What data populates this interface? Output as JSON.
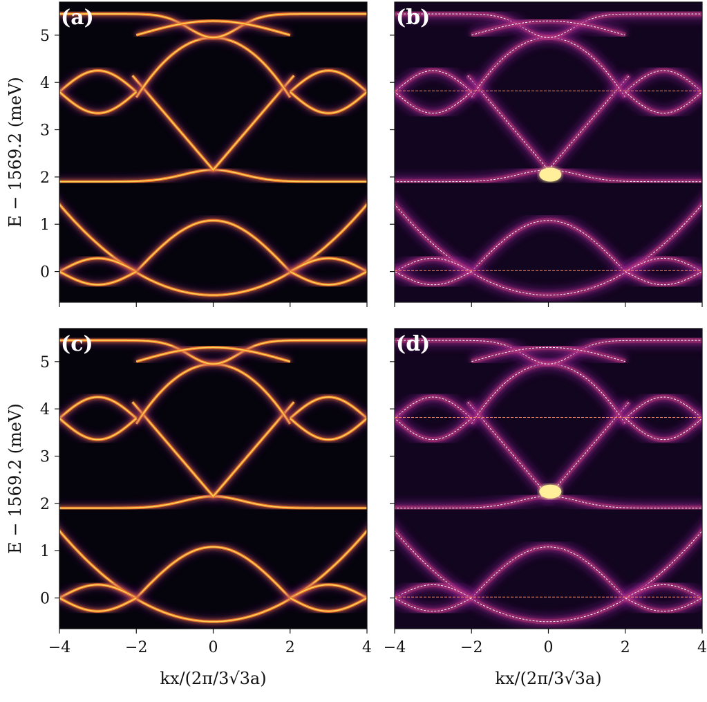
{
  "chart_data": [
    {
      "type": "heatmap",
      "panel_label": "(a)",
      "xlim": [
        -4,
        4
      ],
      "ylim": [
        -0.65,
        5.7
      ],
      "xticks": [
        -4,
        -2,
        0,
        2,
        4
      ],
      "yticks": [
        0,
        1,
        2,
        3,
        4,
        5
      ],
      "ylabel": "E − 1569.2 (meV)",
      "xlabel": "",
      "show_x_tick_labels": false,
      "show_y_tick_labels": true,
      "overlay_bands": false,
      "colormap": "inferno",
      "flat_band_levels": [
        1.9,
        5.45
      ],
      "dirac_energy": 2.15,
      "lower_band_top": 1.05
    },
    {
      "type": "heatmap",
      "panel_label": "(b)",
      "xlim": [
        -4,
        4
      ],
      "ylim": [
        -0.65,
        5.7
      ],
      "xticks": [
        -4,
        -2,
        0,
        2,
        4
      ],
      "yticks": [
        0,
        1,
        2,
        3,
        4,
        5
      ],
      "ylabel": "",
      "xlabel": "",
      "show_x_tick_labels": false,
      "show_y_tick_labels": false,
      "overlay_bands": true,
      "reference_lines": [
        3.82,
        0.02
      ],
      "colormap": "inferno"
    },
    {
      "type": "heatmap",
      "panel_label": "(c)",
      "xlim": [
        -4,
        4
      ],
      "ylim": [
        -0.65,
        5.7
      ],
      "xticks": [
        -4,
        -2,
        0,
        2,
        4
      ],
      "yticks": [
        0,
        1,
        2,
        3,
        4,
        5
      ],
      "ylabel": "E − 1569.2 (meV)",
      "xlabel": "kx/(2π/3√3a)",
      "show_x_tick_labels": true,
      "show_y_tick_labels": true,
      "overlay_bands": false,
      "colormap": "inferno"
    },
    {
      "type": "heatmap",
      "panel_label": "(d)",
      "xlim": [
        -4,
        4
      ],
      "ylim": [
        -0.65,
        5.7
      ],
      "xticks": [
        -4,
        -2,
        0,
        2,
        4
      ],
      "yticks": [
        0,
        1,
        2,
        3,
        4,
        5
      ],
      "ylabel": "",
      "xlabel": "kx/(2π/3√3a)",
      "show_x_tick_labels": true,
      "show_y_tick_labels": false,
      "overlay_bands": true,
      "reference_lines": [
        3.82,
        0.02
      ],
      "colormap": "inferno"
    }
  ]
}
